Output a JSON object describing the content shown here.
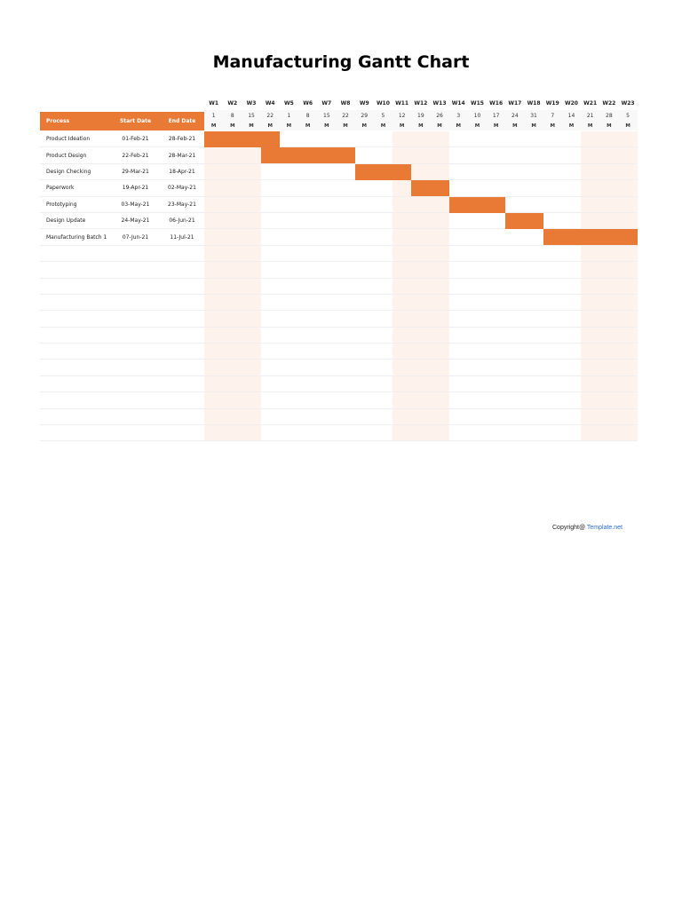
{
  "title": "Manufacturing Gantt Chart",
  "table": {
    "headers": {
      "process": "Process",
      "start": "Start Date",
      "end": "End Date"
    },
    "rows": [
      {
        "process": "Product Ideation",
        "start": "01-Feb-21",
        "end": "28-Feb-21"
      },
      {
        "process": "Product Design",
        "start": "22-Feb-21",
        "end": "28-Mar-21"
      },
      {
        "process": "Design Checking",
        "start": "29-Mar-21",
        "end": "18-Apr-21"
      },
      {
        "process": "Paperwork",
        "start": "19-Apr-21",
        "end": "02-May-21"
      },
      {
        "process": "Prototyping",
        "start": "03-May-21",
        "end": "23-May-21"
      },
      {
        "process": "Design Update",
        "start": "24-May-21",
        "end": "06-Jun-21"
      },
      {
        "process": "Manufacturing Batch 1",
        "start": "07-Jun-21",
        "end": "11-Jul-21"
      }
    ],
    "empty_rows": 12
  },
  "timeline": {
    "weeks": [
      "W1",
      "W2",
      "W3",
      "W4",
      "W5",
      "W6",
      "W7",
      "W8",
      "W9",
      "W10",
      "W11",
      "W12",
      "W13",
      "W14",
      "W15",
      "W16",
      "W17",
      "W18",
      "W19",
      "W20",
      "W21",
      "W22",
      "W23"
    ],
    "dates": [
      "1",
      "8",
      "15",
      "22",
      "1",
      "8",
      "15",
      "22",
      "29",
      "5",
      "12",
      "19",
      "26",
      "3",
      "10",
      "17",
      "24",
      "31",
      "7",
      "14",
      "21",
      "28",
      "5"
    ],
    "day_letter": "M",
    "shaded_week_ranges": [
      [
        0,
        2
      ],
      [
        10,
        12
      ],
      [
        20,
        22
      ]
    ]
  },
  "colors": {
    "bar": "#e97a36",
    "header": "#e97a36",
    "band": "#fdf2ec",
    "link": "#2a6fd6"
  },
  "footer": {
    "copyright": "Copyright@ ",
    "brand": "Template.net"
  },
  "chart_data": {
    "type": "gantt",
    "title": "Manufacturing Gantt Chart",
    "categories": [
      "Product Ideation",
      "Product Design",
      "Design Checking",
      "Paperwork",
      "Prototyping",
      "Design Update",
      "Manufacturing Batch 1"
    ],
    "x_ticks": [
      "W1",
      "W2",
      "W3",
      "W4",
      "W5",
      "W6",
      "W7",
      "W8",
      "W9",
      "W10",
      "W11",
      "W12",
      "W13",
      "W14",
      "W15",
      "W16",
      "W17",
      "W18",
      "W19",
      "W20",
      "W21",
      "W22",
      "W23"
    ],
    "tasks": [
      {
        "name": "Product Ideation",
        "start": "01-Feb-21",
        "end": "28-Feb-21",
        "start_week": 1,
        "end_week": 4
      },
      {
        "name": "Product Design",
        "start": "22-Feb-21",
        "end": "28-Mar-21",
        "start_week": 4,
        "end_week": 8
      },
      {
        "name": "Design Checking",
        "start": "29-Mar-21",
        "end": "18-Apr-21",
        "start_week": 9,
        "end_week": 11
      },
      {
        "name": "Paperwork",
        "start": "19-Apr-21",
        "end": "02-May-21",
        "start_week": 12,
        "end_week": 13
      },
      {
        "name": "Prototyping",
        "start": "03-May-21",
        "end": "23-May-21",
        "start_week": 14,
        "end_week": 16
      },
      {
        "name": "Design Update",
        "start": "24-May-21",
        "end": "06-Jun-21",
        "start_week": 17,
        "end_week": 18
      },
      {
        "name": "Manufacturing Batch 1",
        "start": "07-Jun-21",
        "end": "11-Jul-21",
        "start_week": 19,
        "end_week": 23
      }
    ]
  }
}
